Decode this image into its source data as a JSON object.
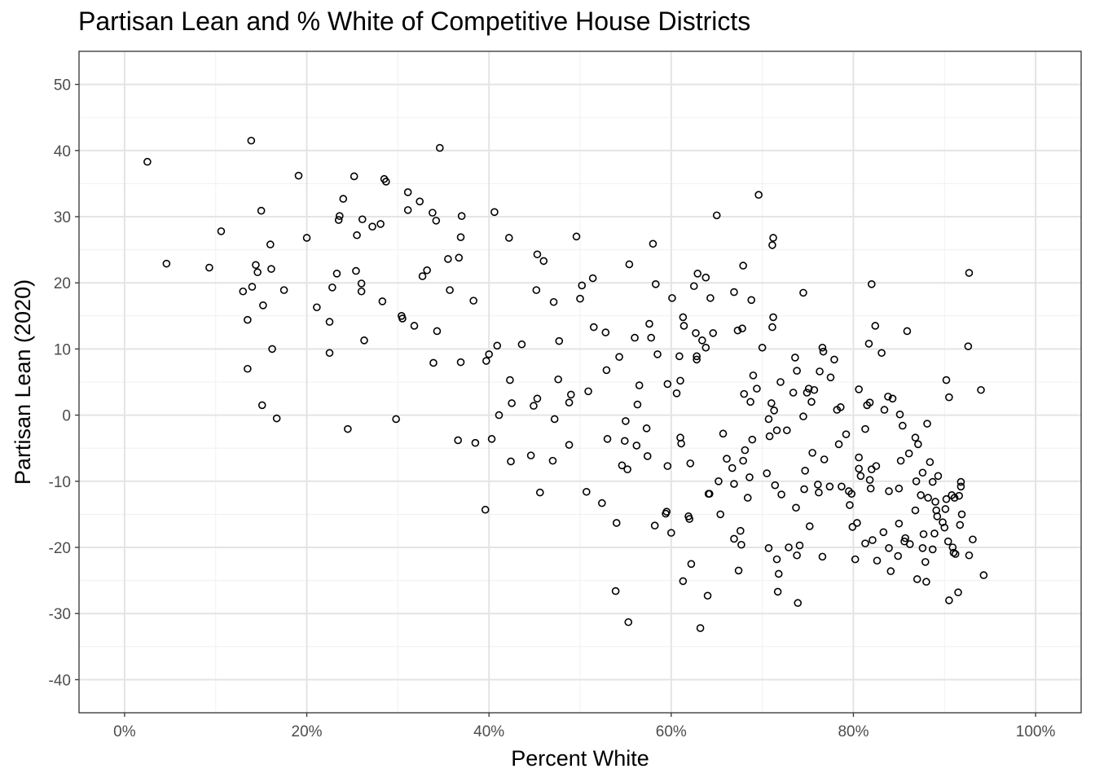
{
  "chart_data": {
    "type": "scatter",
    "title": "Partisan Lean and % White of Competitive House Districts",
    "xlabel": "Percent White",
    "ylabel": "Partisan Lean (2020)",
    "xlim": [
      -0.05,
      1.05
    ],
    "ylim": [
      -45,
      55
    ],
    "x_ticks": [
      0,
      0.2,
      0.4,
      0.6,
      0.8,
      1.0
    ],
    "x_tick_labels": [
      "0%",
      "20%",
      "40%",
      "60%",
      "80%",
      "100%"
    ],
    "y_ticks": [
      -40,
      -30,
      -20,
      -10,
      0,
      10,
      20,
      30,
      40,
      50
    ],
    "y_tick_labels": [
      "-40",
      "-30",
      "-20",
      "-10",
      "0",
      "10",
      "20",
      "30",
      "40",
      "50"
    ],
    "grid": true,
    "marker": "open-circle",
    "points": [
      [
        0.025,
        38.3
      ],
      [
        0.046,
        22.9
      ],
      [
        0.093,
        22.3
      ],
      [
        0.106,
        27.8
      ],
      [
        0.13,
        18.7
      ],
      [
        0.135,
        14.4
      ],
      [
        0.135,
        7.0
      ],
      [
        0.139,
        41.5
      ],
      [
        0.14,
        19.4
      ],
      [
        0.144,
        22.7
      ],
      [
        0.146,
        21.6
      ],
      [
        0.15,
        30.9
      ],
      [
        0.151,
        1.5
      ],
      [
        0.152,
        16.6
      ],
      [
        0.16,
        25.8
      ],
      [
        0.161,
        22.1
      ],
      [
        0.162,
        10.0
      ],
      [
        0.167,
        -0.5
      ],
      [
        0.175,
        18.9
      ],
      [
        0.191,
        36.2
      ],
      [
        0.2,
        26.8
      ],
      [
        0.211,
        16.3
      ],
      [
        0.225,
        14.1
      ],
      [
        0.225,
        9.4
      ],
      [
        0.228,
        19.3
      ],
      [
        0.233,
        21.4
      ],
      [
        0.235,
        29.5
      ],
      [
        0.236,
        30.1
      ],
      [
        0.24,
        32.7
      ],
      [
        0.245,
        -2.1
      ],
      [
        0.252,
        36.1
      ],
      [
        0.254,
        21.8
      ],
      [
        0.255,
        27.2
      ],
      [
        0.26,
        19.9
      ],
      [
        0.26,
        18.7
      ],
      [
        0.261,
        29.6
      ],
      [
        0.263,
        11.3
      ],
      [
        0.272,
        28.5
      ],
      [
        0.281,
        28.9
      ],
      [
        0.283,
        17.2
      ],
      [
        0.285,
        35.7
      ],
      [
        0.287,
        35.3
      ],
      [
        0.298,
        -0.6
      ],
      [
        0.304,
        15.0
      ],
      [
        0.305,
        14.6
      ],
      [
        0.311,
        33.7
      ],
      [
        0.311,
        31.0
      ],
      [
        0.318,
        13.5
      ],
      [
        0.324,
        32.3
      ],
      [
        0.327,
        21.0
      ],
      [
        0.332,
        21.9
      ],
      [
        0.338,
        30.6
      ],
      [
        0.339,
        7.9
      ],
      [
        0.342,
        29.4
      ],
      [
        0.343,
        12.7
      ],
      [
        0.346,
        40.4
      ],
      [
        0.355,
        23.6
      ],
      [
        0.357,
        18.9
      ],
      [
        0.366,
        -3.8
      ],
      [
        0.367,
        23.8
      ],
      [
        0.369,
        26.9
      ],
      [
        0.37,
        30.1
      ],
      [
        0.369,
        8.0
      ],
      [
        0.383,
        17.3
      ],
      [
        0.385,
        -4.2
      ],
      [
        0.396,
        -14.3
      ],
      [
        0.397,
        8.2
      ],
      [
        0.4,
        9.2
      ],
      [
        0.403,
        -3.6
      ],
      [
        0.406,
        30.7
      ],
      [
        0.409,
        10.5
      ],
      [
        0.411,
        0.0
      ],
      [
        0.422,
        26.8
      ],
      [
        0.423,
        5.3
      ],
      [
        0.424,
        -7.0
      ],
      [
        0.425,
        1.8
      ],
      [
        0.436,
        10.7
      ],
      [
        0.446,
        -6.1
      ],
      [
        0.449,
        1.4
      ],
      [
        0.452,
        18.9
      ],
      [
        0.453,
        24.3
      ],
      [
        0.453,
        2.5
      ],
      [
        0.456,
        -11.7
      ],
      [
        0.46,
        23.3
      ],
      [
        0.47,
        -6.9
      ],
      [
        0.471,
        17.1
      ],
      [
        0.472,
        -0.6
      ],
      [
        0.476,
        5.4
      ],
      [
        0.477,
        11.2
      ],
      [
        0.488,
        -4.5
      ],
      [
        0.488,
        1.9
      ],
      [
        0.49,
        3.1
      ],
      [
        0.496,
        27.0
      ],
      [
        0.5,
        17.6
      ],
      [
        0.502,
        19.6
      ],
      [
        0.507,
        -11.6
      ],
      [
        0.509,
        3.6
      ],
      [
        0.514,
        20.7
      ],
      [
        0.515,
        13.3
      ],
      [
        0.524,
        -13.3
      ],
      [
        0.528,
        12.5
      ],
      [
        0.529,
        6.8
      ],
      [
        0.53,
        -3.6
      ],
      [
        0.539,
        -26.6
      ],
      [
        0.54,
        -16.3
      ],
      [
        0.543,
        8.8
      ],
      [
        0.546,
        -7.6
      ],
      [
        0.549,
        -3.9
      ],
      [
        0.55,
        -0.9
      ],
      [
        0.552,
        -8.2
      ],
      [
        0.553,
        -31.3
      ],
      [
        0.554,
        22.8
      ],
      [
        0.56,
        11.7
      ],
      [
        0.562,
        -4.6
      ],
      [
        0.563,
        1.6
      ],
      [
        0.565,
        4.5
      ],
      [
        0.573,
        -2.0
      ],
      [
        0.574,
        -6.2
      ],
      [
        0.576,
        13.8
      ],
      [
        0.578,
        11.7
      ],
      [
        0.58,
        25.9
      ],
      [
        0.583,
        19.8
      ],
      [
        0.582,
        -16.7
      ],
      [
        0.585,
        9.2
      ],
      [
        0.594,
        -14.9
      ],
      [
        0.595,
        -14.6
      ],
      [
        0.596,
        4.7
      ],
      [
        0.596,
        -7.7
      ],
      [
        0.6,
        -17.8
      ],
      [
        0.601,
        17.7
      ],
      [
        0.606,
        3.3
      ],
      [
        0.609,
        8.9
      ],
      [
        0.61,
        5.2
      ],
      [
        0.61,
        -3.4
      ],
      [
        0.611,
        -4.3
      ],
      [
        0.613,
        14.8
      ],
      [
        0.614,
        13.5
      ],
      [
        0.613,
        -25.1
      ],
      [
        0.619,
        -15.3
      ],
      [
        0.62,
        -15.7
      ],
      [
        0.621,
        -7.3
      ],
      [
        0.622,
        -22.5
      ],
      [
        0.625,
        19.5
      ],
      [
        0.627,
        12.4
      ],
      [
        0.628,
        8.9
      ],
      [
        0.628,
        8.4
      ],
      [
        0.629,
        21.4
      ],
      [
        0.632,
        -32.2
      ],
      [
        0.634,
        11.3
      ],
      [
        0.638,
        10.2
      ],
      [
        0.638,
        20.8
      ],
      [
        0.64,
        -27.3
      ],
      [
        0.641,
        -11.9
      ],
      [
        0.642,
        -11.9
      ],
      [
        0.643,
        17.7
      ],
      [
        0.646,
        12.4
      ],
      [
        0.65,
        30.2
      ],
      [
        0.652,
        -10.0
      ],
      [
        0.654,
        -15.0
      ],
      [
        0.657,
        -2.8
      ],
      [
        0.661,
        -6.6
      ],
      [
        0.667,
        -8.0
      ],
      [
        0.669,
        18.6
      ],
      [
        0.669,
        -10.4
      ],
      [
        0.669,
        -18.7
      ],
      [
        0.673,
        12.8
      ],
      [
        0.674,
        -23.5
      ],
      [
        0.676,
        -17.5
      ],
      [
        0.677,
        -19.6
      ],
      [
        0.678,
        13.1
      ],
      [
        0.679,
        22.6
      ],
      [
        0.679,
        -6.9
      ],
      [
        0.68,
        3.2
      ],
      [
        0.681,
        -5.3
      ],
      [
        0.684,
        -12.5
      ],
      [
        0.686,
        -9.4
      ],
      [
        0.687,
        2.0
      ],
      [
        0.688,
        17.4
      ],
      [
        0.689,
        -3.7
      ],
      [
        0.69,
        6.0
      ],
      [
        0.694,
        4.0
      ],
      [
        0.696,
        33.3
      ],
      [
        0.7,
        10.2
      ],
      [
        0.705,
        -8.8
      ],
      [
        0.707,
        -0.6
      ],
      [
        0.708,
        -3.2
      ],
      [
        0.707,
        -20.1
      ],
      [
        0.71,
        1.8
      ],
      [
        0.711,
        25.7
      ],
      [
        0.711,
        13.3
      ],
      [
        0.712,
        26.8
      ],
      [
        0.712,
        14.8
      ],
      [
        0.713,
        0.7
      ],
      [
        0.714,
        -10.6
      ],
      [
        0.716,
        -2.3
      ],
      [
        0.716,
        -21.8
      ],
      [
        0.717,
        -26.7
      ],
      [
        0.718,
        -24.0
      ],
      [
        0.72,
        5.0
      ],
      [
        0.721,
        -12.0
      ],
      [
        0.727,
        -2.3
      ],
      [
        0.729,
        -20.0
      ],
      [
        0.734,
        3.4
      ],
      [
        0.736,
        8.7
      ],
      [
        0.737,
        -14.0
      ],
      [
        0.738,
        6.7
      ],
      [
        0.738,
        -21.2
      ],
      [
        0.739,
        -28.4
      ],
      [
        0.741,
        -19.7
      ],
      [
        0.745,
        -0.2
      ],
      [
        0.745,
        18.5
      ],
      [
        0.746,
        -11.2
      ],
      [
        0.747,
        -8.4
      ],
      [
        0.749,
        3.4
      ],
      [
        0.751,
        4.0
      ],
      [
        0.752,
        -16.8
      ],
      [
        0.754,
        2.0
      ],
      [
        0.755,
        -5.7
      ],
      [
        0.757,
        3.8
      ],
      [
        0.761,
        -10.5
      ],
      [
        0.762,
        -11.7
      ],
      [
        0.763,
        6.6
      ],
      [
        0.766,
        10.2
      ],
      [
        0.766,
        -21.4
      ],
      [
        0.767,
        9.6
      ],
      [
        0.768,
        -6.7
      ],
      [
        0.774,
        -10.8
      ],
      [
        0.775,
        5.7
      ],
      [
        0.779,
        8.4
      ],
      [
        0.782,
        0.8
      ],
      [
        0.784,
        -4.4
      ],
      [
        0.786,
        1.2
      ],
      [
        0.787,
        -10.8
      ],
      [
        0.792,
        -2.9
      ],
      [
        0.795,
        -11.5
      ],
      [
        0.796,
        -13.6
      ],
      [
        0.798,
        -11.9
      ],
      [
        0.799,
        -16.9
      ],
      [
        0.802,
        -21.8
      ],
      [
        0.804,
        -16.3
      ],
      [
        0.806,
        3.9
      ],
      [
        0.806,
        -6.4
      ],
      [
        0.806,
        -8.1
      ],
      [
        0.808,
        -9.2
      ],
      [
        0.813,
        -2.1
      ],
      [
        0.813,
        -19.4
      ],
      [
        0.815,
        1.5
      ],
      [
        0.817,
        10.8
      ],
      [
        0.818,
        1.9
      ],
      [
        0.818,
        -9.8
      ],
      [
        0.819,
        -11.1
      ],
      [
        0.82,
        -8.2
      ],
      [
        0.82,
        19.8
      ],
      [
        0.821,
        -18.9
      ],
      [
        0.824,
        13.5
      ],
      [
        0.825,
        -7.7
      ],
      [
        0.826,
        -22.0
      ],
      [
        0.831,
        9.4
      ],
      [
        0.833,
        -17.7
      ],
      [
        0.834,
        0.8
      ],
      [
        0.838,
        2.8
      ],
      [
        0.839,
        -20.1
      ],
      [
        0.839,
        -11.5
      ],
      [
        0.841,
        -23.6
      ],
      [
        0.843,
        2.5
      ],
      [
        0.849,
        -21.3
      ],
      [
        0.85,
        -16.4
      ],
      [
        0.85,
        -11.1
      ],
      [
        0.851,
        0.1
      ],
      [
        0.852,
        -6.9
      ],
      [
        0.854,
        -1.6
      ],
      [
        0.856,
        -19.1
      ],
      [
        0.857,
        -18.6
      ],
      [
        0.859,
        12.7
      ],
      [
        0.861,
        -5.8
      ],
      [
        0.862,
        -19.5
      ],
      [
        0.868,
        -14.4
      ],
      [
        0.868,
        -3.4
      ],
      [
        0.869,
        -10.0
      ],
      [
        0.87,
        -24.8
      ],
      [
        0.871,
        -4.4
      ],
      [
        0.874,
        -12.1
      ],
      [
        0.876,
        -20.1
      ],
      [
        0.876,
        -8.7
      ],
      [
        0.877,
        -18.0
      ],
      [
        0.879,
        -22.2
      ],
      [
        0.88,
        -25.2
      ],
      [
        0.881,
        -1.3
      ],
      [
        0.882,
        -12.5
      ],
      [
        0.884,
        -7.1
      ],
      [
        0.887,
        -10.1
      ],
      [
        0.887,
        -20.3
      ],
      [
        0.889,
        -17.9
      ],
      [
        0.89,
        -13.1
      ],
      [
        0.891,
        -14.4
      ],
      [
        0.892,
        -15.3
      ],
      [
        0.893,
        -9.2
      ],
      [
        0.898,
        -16.2
      ],
      [
        0.9,
        -17.0
      ],
      [
        0.901,
        -14.2
      ],
      [
        0.902,
        -12.7
      ],
      [
        0.902,
        5.3
      ],
      [
        0.904,
        -19.1
      ],
      [
        0.905,
        -28.0
      ],
      [
        0.905,
        2.7
      ],
      [
        0.908,
        -12.1
      ],
      [
        0.909,
        -20.0
      ],
      [
        0.91,
        -20.8
      ],
      [
        0.911,
        -12.5
      ],
      [
        0.912,
        -21.0
      ],
      [
        0.915,
        -26.8
      ],
      [
        0.916,
        -12.2
      ],
      [
        0.917,
        -16.6
      ],
      [
        0.918,
        -10.1
      ],
      [
        0.918,
        -10.8
      ],
      [
        0.919,
        -15.0
      ],
      [
        0.926,
        10.4
      ],
      [
        0.927,
        21.5
      ],
      [
        0.927,
        -21.2
      ],
      [
        0.931,
        -18.8
      ],
      [
        0.94,
        3.8
      ],
      [
        0.943,
        -24.2
      ]
    ]
  }
}
